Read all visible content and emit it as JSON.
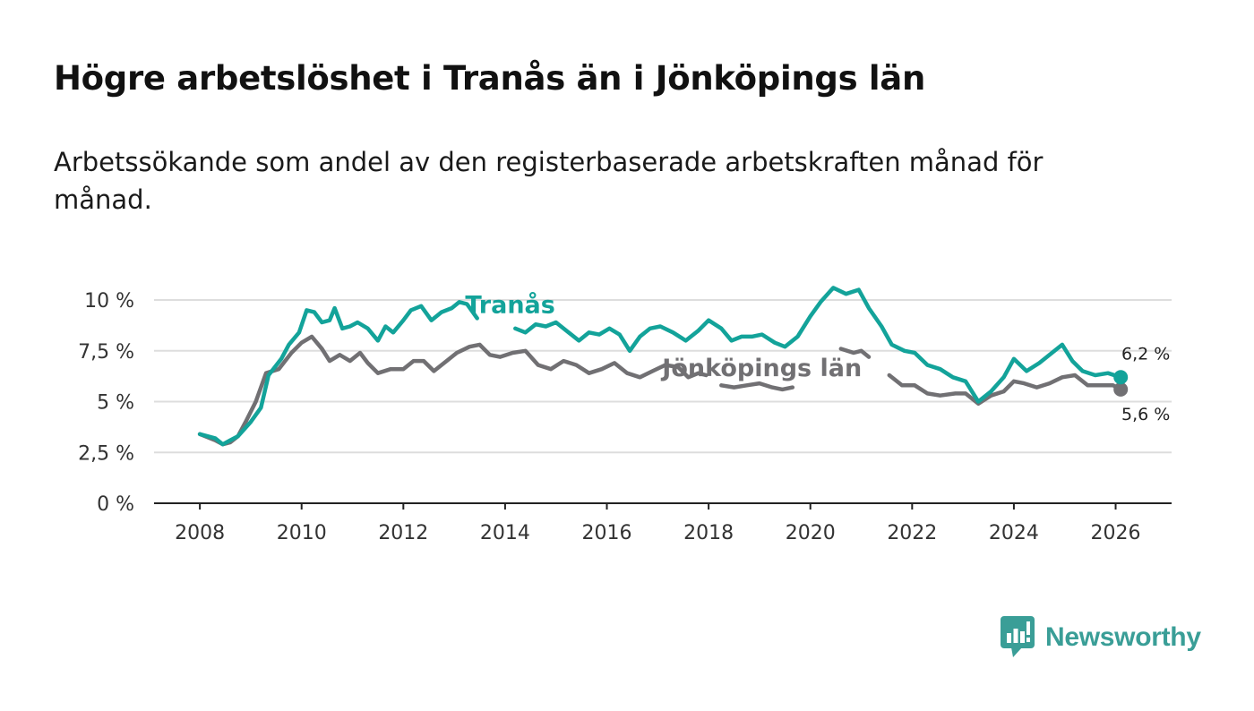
{
  "header": {
    "title": "Högre arbetslöshet i Tranås än i Jönköpings län",
    "subtitle": "Arbetssökande som andel av den registerbaserade arbetskraften månad för månad."
  },
  "brand": {
    "name": "Newsworthy"
  },
  "colors": {
    "tranas": "#13a39a",
    "jonkoping": "#717073",
    "grid": "#dddddd",
    "axis": "#222222",
    "logo": "#3a9e97"
  },
  "chart_data": {
    "type": "line",
    "title": "Högre arbetslöshet i Tranås än i Jönköpings län",
    "xlabel": "",
    "ylabel": "",
    "xlim": [
      2007.1,
      2027.1
    ],
    "ylim": [
      0,
      10
    ],
    "x_ticks": [
      2008,
      2010,
      2012,
      2014,
      2016,
      2018,
      2020,
      2022,
      2024,
      2026
    ],
    "x_tick_labels": [
      "2008",
      "2010",
      "2012",
      "2014",
      "2016",
      "2018",
      "2020",
      "2022",
      "2024",
      "2026"
    ],
    "y_ticks": [
      0,
      2.5,
      5,
      7.5,
      10
    ],
    "y_tick_labels": [
      "0 %",
      "2,5 %",
      "5 %",
      "7,5 %",
      "10 %"
    ],
    "grid": true,
    "series": [
      {
        "name": "Tranås",
        "color": "#13a39a",
        "label_x": 2014.1,
        "label_y": 9.8,
        "end_label": "6,2 %",
        "end_value": 6.2,
        "gaps": [
          [
            2013.45,
            2014.2
          ]
        ],
        "points": [
          [
            2008.0,
            3.4
          ],
          [
            2008.3,
            3.2
          ],
          [
            2008.45,
            2.9
          ],
          [
            2008.6,
            3.1
          ],
          [
            2008.75,
            3.3
          ],
          [
            2009.0,
            4.0
          ],
          [
            2009.2,
            4.7
          ],
          [
            2009.35,
            6.3
          ],
          [
            2009.6,
            7.1
          ],
          [
            2009.75,
            7.8
          ],
          [
            2009.95,
            8.4
          ],
          [
            2010.1,
            9.5
          ],
          [
            2010.25,
            9.4
          ],
          [
            2010.4,
            8.9
          ],
          [
            2010.55,
            9.0
          ],
          [
            2010.65,
            9.6
          ],
          [
            2010.8,
            8.6
          ],
          [
            2010.95,
            8.7
          ],
          [
            2011.1,
            8.9
          ],
          [
            2011.3,
            8.6
          ],
          [
            2011.5,
            8.0
          ],
          [
            2011.65,
            8.7
          ],
          [
            2011.8,
            8.4
          ],
          [
            2012.0,
            9.0
          ],
          [
            2012.15,
            9.5
          ],
          [
            2012.35,
            9.7
          ],
          [
            2012.55,
            9.0
          ],
          [
            2012.75,
            9.4
          ],
          [
            2012.95,
            9.6
          ],
          [
            2013.1,
            9.9
          ],
          [
            2013.25,
            9.8
          ],
          [
            2013.45,
            9.1
          ],
          [
            2014.2,
            8.6
          ],
          [
            2014.4,
            8.4
          ],
          [
            2014.6,
            8.8
          ],
          [
            2014.8,
            8.7
          ],
          [
            2015.0,
            8.9
          ],
          [
            2015.2,
            8.5
          ],
          [
            2015.45,
            8.0
          ],
          [
            2015.65,
            8.4
          ],
          [
            2015.85,
            8.3
          ],
          [
            2016.05,
            8.6
          ],
          [
            2016.25,
            8.3
          ],
          [
            2016.45,
            7.5
          ],
          [
            2016.65,
            8.2
          ],
          [
            2016.85,
            8.6
          ],
          [
            2017.05,
            8.7
          ],
          [
            2017.3,
            8.4
          ],
          [
            2017.55,
            8.0
          ],
          [
            2017.8,
            8.5
          ],
          [
            2018.0,
            9.0
          ],
          [
            2018.25,
            8.6
          ],
          [
            2018.45,
            8.0
          ],
          [
            2018.65,
            8.2
          ],
          [
            2018.85,
            8.2
          ],
          [
            2019.05,
            8.3
          ],
          [
            2019.3,
            7.9
          ],
          [
            2019.5,
            7.7
          ],
          [
            2019.75,
            8.2
          ],
          [
            2020.0,
            9.2
          ],
          [
            2020.2,
            9.9
          ],
          [
            2020.45,
            10.6
          ],
          [
            2020.7,
            10.3
          ],
          [
            2020.95,
            10.5
          ],
          [
            2021.15,
            9.6
          ],
          [
            2021.4,
            8.7
          ],
          [
            2021.6,
            7.8
          ],
          [
            2021.85,
            7.5
          ],
          [
            2022.05,
            7.4
          ],
          [
            2022.3,
            6.8
          ],
          [
            2022.55,
            6.6
          ],
          [
            2022.8,
            6.2
          ],
          [
            2023.05,
            6.0
          ],
          [
            2023.3,
            5.0
          ],
          [
            2023.55,
            5.5
          ],
          [
            2023.8,
            6.2
          ],
          [
            2024.0,
            7.1
          ],
          [
            2024.25,
            6.5
          ],
          [
            2024.5,
            6.9
          ],
          [
            2024.75,
            7.4
          ],
          [
            2024.95,
            7.8
          ],
          [
            2025.15,
            7.0
          ],
          [
            2025.35,
            6.5
          ],
          [
            2025.6,
            6.3
          ],
          [
            2025.85,
            6.4
          ],
          [
            2026.1,
            6.2
          ]
        ]
      },
      {
        "name": "Jönköpings län",
        "color": "#717073",
        "label_x": 2019.05,
        "label_y": 6.7,
        "end_label": "5,6 %",
        "end_value": 5.6,
        "gaps": [
          [
            2017.95,
            2018.25
          ],
          [
            2019.65,
            2020.6
          ],
          [
            2021.15,
            2021.55
          ]
        ],
        "points": [
          [
            2008.0,
            3.4
          ],
          [
            2008.3,
            3.1
          ],
          [
            2008.45,
            2.9
          ],
          [
            2008.6,
            3.0
          ],
          [
            2008.75,
            3.3
          ],
          [
            2008.9,
            4.0
          ],
          [
            2009.1,
            5.0
          ],
          [
            2009.3,
            6.4
          ],
          [
            2009.55,
            6.6
          ],
          [
            2009.8,
            7.4
          ],
          [
            2010.0,
            7.9
          ],
          [
            2010.2,
            8.2
          ],
          [
            2010.4,
            7.6
          ],
          [
            2010.55,
            7.0
          ],
          [
            2010.75,
            7.3
          ],
          [
            2010.95,
            7.0
          ],
          [
            2011.15,
            7.4
          ],
          [
            2011.3,
            6.9
          ],
          [
            2011.5,
            6.4
          ],
          [
            2011.75,
            6.6
          ],
          [
            2012.0,
            6.6
          ],
          [
            2012.2,
            7.0
          ],
          [
            2012.4,
            7.0
          ],
          [
            2012.6,
            6.5
          ],
          [
            2012.85,
            7.0
          ],
          [
            2013.05,
            7.4
          ],
          [
            2013.3,
            7.7
          ],
          [
            2013.5,
            7.8
          ],
          [
            2013.7,
            7.3
          ],
          [
            2013.9,
            7.2
          ],
          [
            2014.15,
            7.4
          ],
          [
            2014.4,
            7.5
          ],
          [
            2014.65,
            6.8
          ],
          [
            2014.9,
            6.6
          ],
          [
            2015.15,
            7.0
          ],
          [
            2015.4,
            6.8
          ],
          [
            2015.65,
            6.4
          ],
          [
            2015.9,
            6.6
          ],
          [
            2016.15,
            6.9
          ],
          [
            2016.4,
            6.4
          ],
          [
            2016.65,
            6.2
          ],
          [
            2016.9,
            6.5
          ],
          [
            2017.15,
            6.8
          ],
          [
            2017.4,
            6.7
          ],
          [
            2017.6,
            6.2
          ],
          [
            2017.8,
            6.4
          ],
          [
            2017.95,
            6.3
          ],
          [
            2018.25,
            5.8
          ],
          [
            2018.5,
            5.7
          ],
          [
            2018.75,
            5.8
          ],
          [
            2019.0,
            5.9
          ],
          [
            2019.25,
            5.7
          ],
          [
            2019.45,
            5.6
          ],
          [
            2019.65,
            5.7
          ],
          [
            2020.6,
            7.6
          ],
          [
            2020.85,
            7.4
          ],
          [
            2021.0,
            7.5
          ],
          [
            2021.15,
            7.2
          ],
          [
            2021.55,
            6.3
          ],
          [
            2021.8,
            5.8
          ],
          [
            2022.05,
            5.8
          ],
          [
            2022.3,
            5.4
          ],
          [
            2022.55,
            5.3
          ],
          [
            2022.85,
            5.4
          ],
          [
            2023.05,
            5.4
          ],
          [
            2023.3,
            4.9
          ],
          [
            2023.55,
            5.3
          ],
          [
            2023.8,
            5.5
          ],
          [
            2024.0,
            6.0
          ],
          [
            2024.2,
            5.9
          ],
          [
            2024.45,
            5.7
          ],
          [
            2024.7,
            5.9
          ],
          [
            2024.95,
            6.2
          ],
          [
            2025.2,
            6.3
          ],
          [
            2025.45,
            5.8
          ],
          [
            2025.7,
            5.8
          ],
          [
            2025.95,
            5.8
          ],
          [
            2026.1,
            5.6
          ]
        ]
      }
    ]
  }
}
